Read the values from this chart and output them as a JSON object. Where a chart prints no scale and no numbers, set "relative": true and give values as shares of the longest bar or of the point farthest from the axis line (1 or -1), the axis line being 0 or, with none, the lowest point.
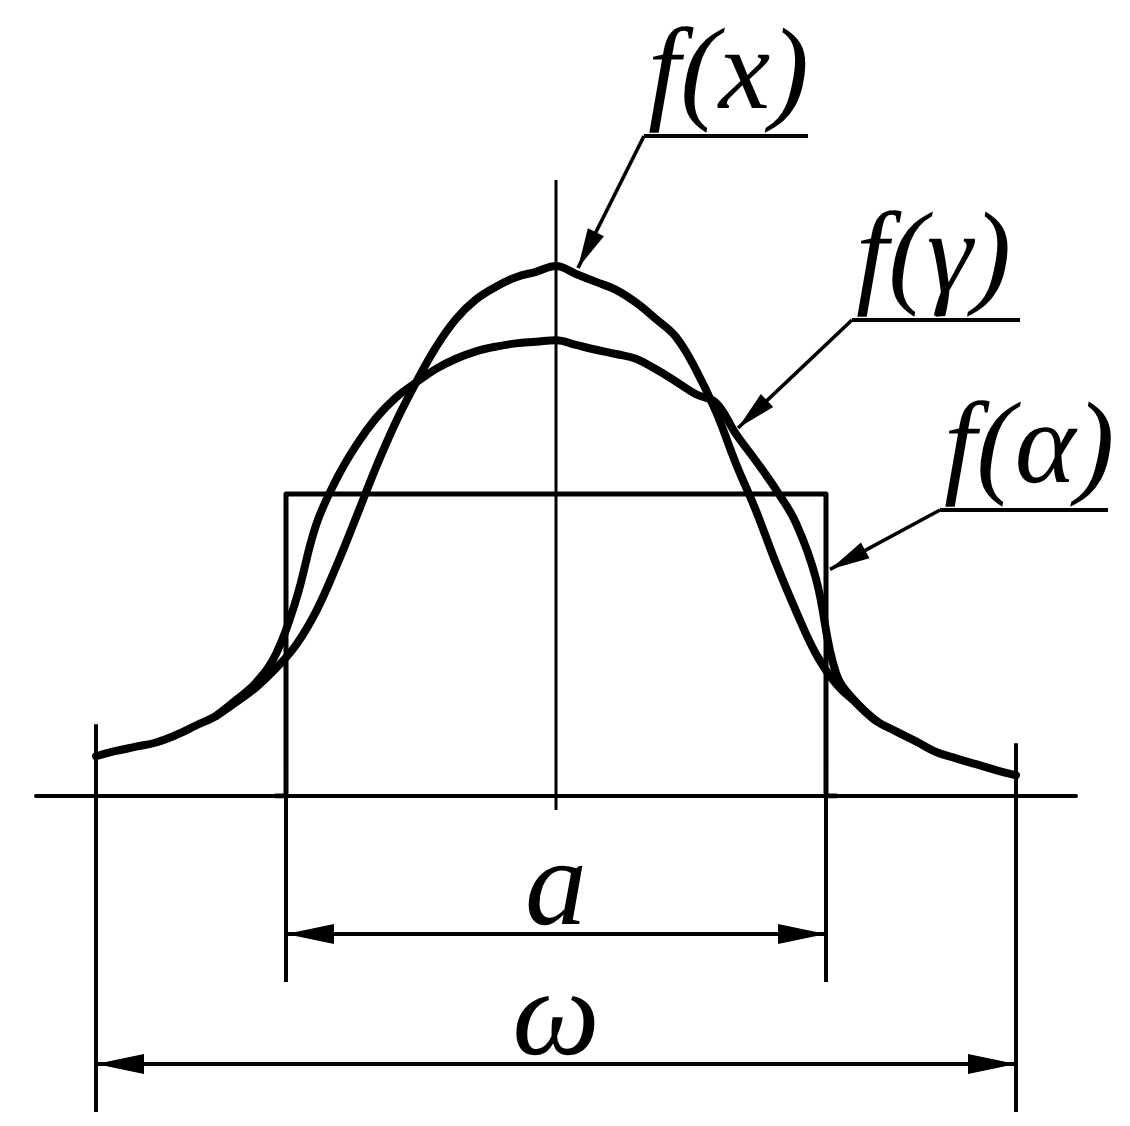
{
  "chart_data": {
    "type": "line",
    "relative": true,
    "legend": "top right",
    "categories": [
      null,
      null,
      null,
      null,
      null,
      null,
      null,
      null,
      null,
      null,
      null,
      null,
      null,
      null,
      null,
      null,
      null,
      null,
      null,
      null,
      null,
      null,
      null,
      null,
      null,
      null,
      null,
      null,
      null,
      null,
      null,
      null,
      null,
      null,
      null,
      null,
      null,
      null,
      null,
      null,
      null,
      null,
      null,
      null,
      null,
      null,
      null,
      null,
      null,
      null,
      null,
      null,
      null
    ],
    "series": [
      {
        "name": "f(x)",
        "color": "#000000",
        "values": [
          null,
          null,
          null,
          0.075,
          0.085,
          0.093,
          0.101,
          0.115,
          0.133,
          0.151,
          0.177,
          0.205,
          0.241,
          0.285,
          0.348,
          0.432,
          0.525,
          0.62,
          0.706,
          0.78,
          0.847,
          0.9,
          0.937,
          0.961,
          0.979,
          0.989,
          1,
          0.985,
          0.97,
          0.955,
          0.931,
          0.9,
          0.866,
          0.804,
          0.725,
          0.627,
          0.538,
          0.439,
          0.349,
          0.268,
          0.212,
          0.176,
          0.142,
          0.122,
          0.103,
          0.083,
          0.071,
          0.06,
          0.049,
          0.039,
          null,
          null,
          null
        ]
      },
      {
        "name": "f(γ)",
        "color": "#000000",
        "values": [
          null,
          null,
          null,
          null,
          null,
          null,
          null,
          null,
          null,
          0.151,
          0.181,
          0.214,
          0.268,
          0.37,
          0.511,
          0.596,
          0.661,
          0.713,
          0.752,
          0.78,
          0.806,
          0.825,
          0.839,
          0.848,
          0.854,
          0.857,
          0.86,
          0.851,
          0.842,
          0.834,
          0.825,
          0.805,
          0.782,
          0.758,
          0.742,
          0.683,
          0.632,
          0.578,
          0.515,
          0.41,
          0.232,
          0.177,
          0.142,
          null,
          null,
          null,
          null,
          null,
          null,
          null,
          null,
          null,
          null
        ]
      },
      {
        "name": "f(α)",
        "type": "step",
        "color": "#000000",
        "values": [
          null,
          null,
          null,
          null,
          null,
          null,
          null,
          null,
          null,
          null,
          null,
          null,
          0,
          0.57,
          0.57,
          0.57,
          0.57,
          0.57,
          0.57,
          0.57,
          0.57,
          0.57,
          0.57,
          0.57,
          0.57,
          0.57,
          0.57,
          0.57,
          0.57,
          0.57,
          0.57,
          0.57,
          0.57,
          0.57,
          0.57,
          0.57,
          0.57,
          0.57,
          0.57,
          0.57,
          0,
          null,
          null,
          null,
          null,
          null,
          null,
          null,
          null,
          null,
          null,
          null,
          null
        ]
      }
    ],
    "annotations": [
      "a",
      "ω"
    ]
  }
}
